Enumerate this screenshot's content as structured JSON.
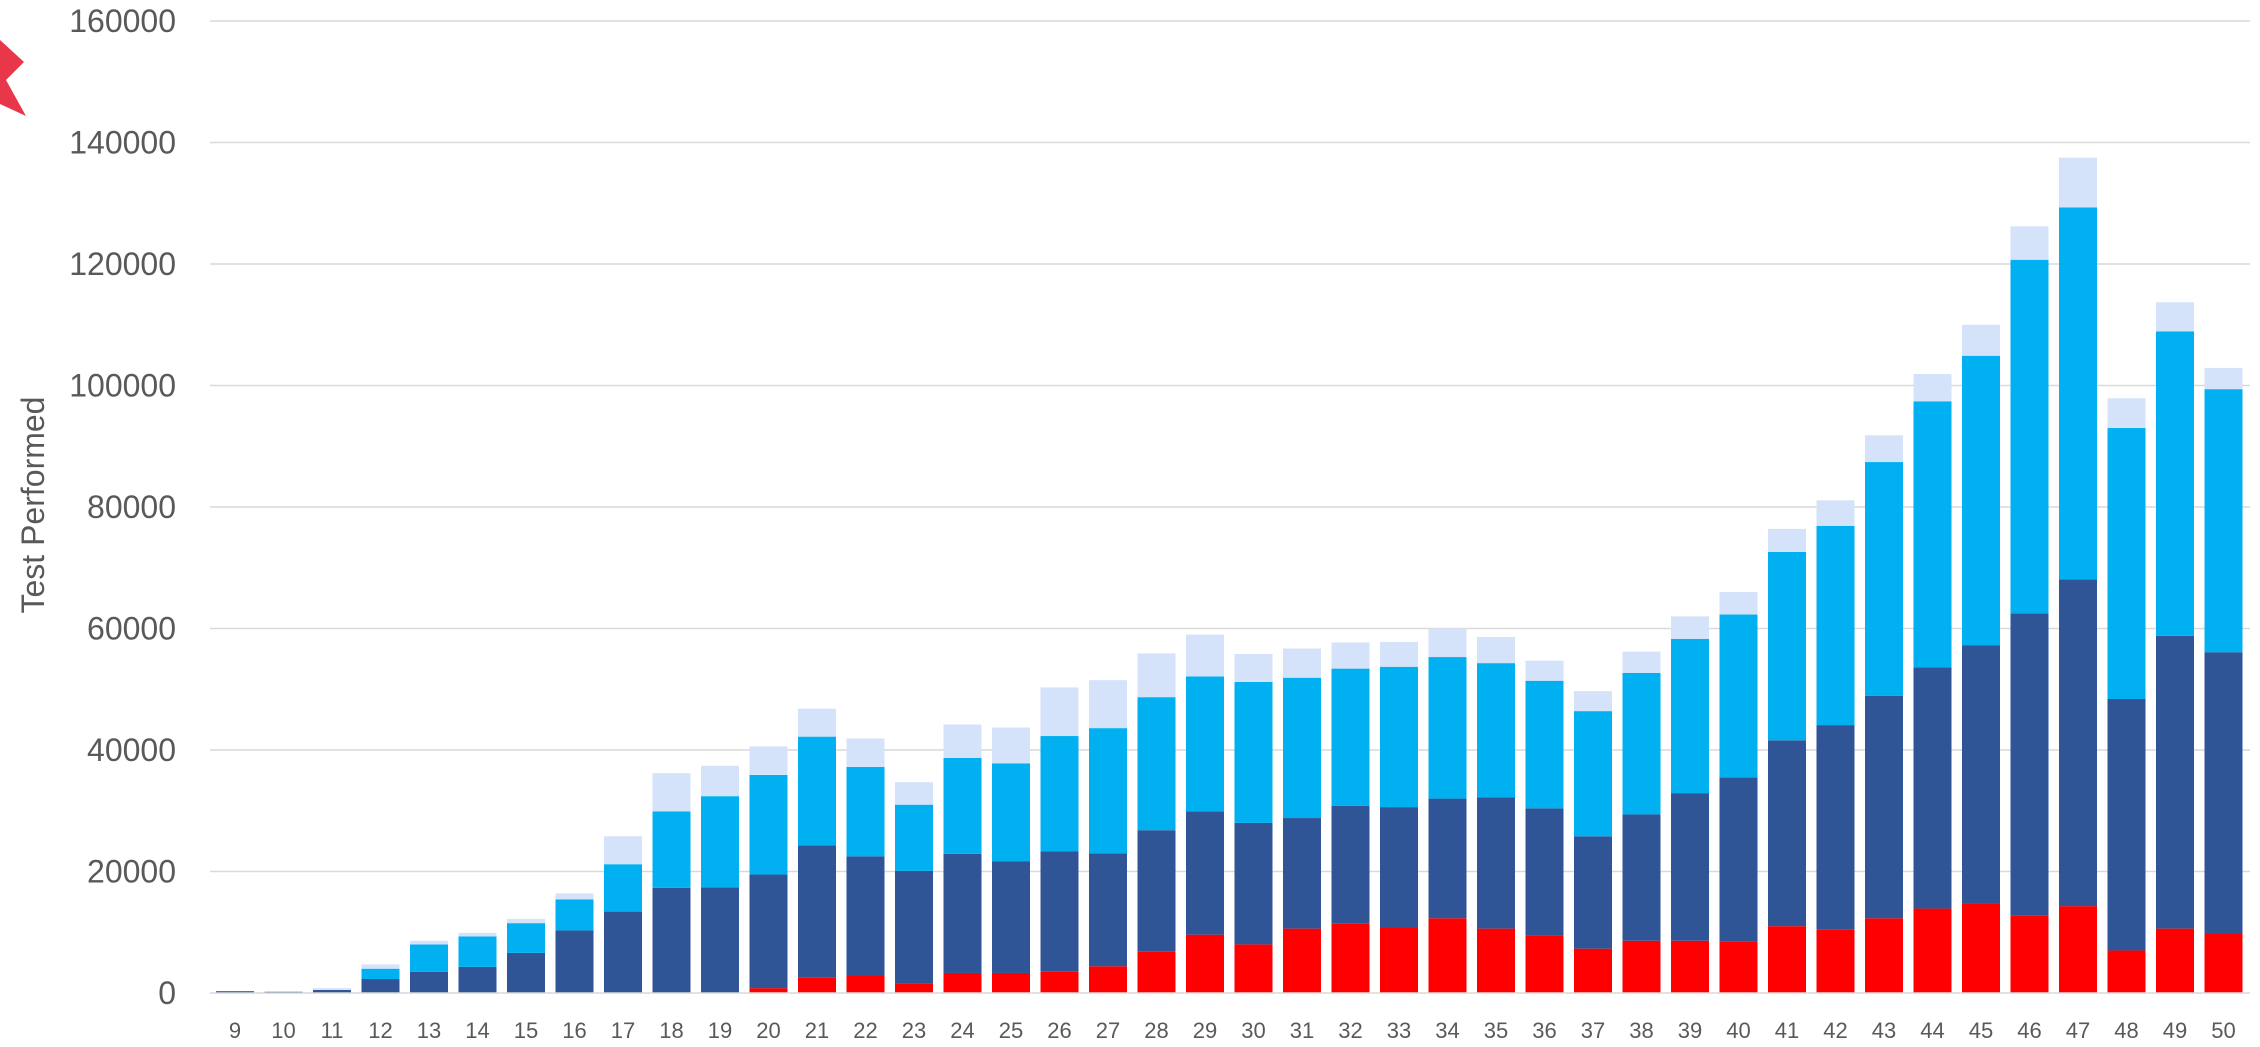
{
  "chart_data": {
    "type": "bar",
    "stacked": true,
    "title": "",
    "xlabel": "",
    "ylabel": "Test Performed",
    "ylim": [
      0,
      160000
    ],
    "yticks": [
      0,
      20000,
      40000,
      60000,
      80000,
      100000,
      120000,
      140000,
      160000
    ],
    "grid": true,
    "legend": "none",
    "categories": [
      "9",
      "10",
      "11",
      "12",
      "13",
      "14",
      "15",
      "16",
      "17",
      "18",
      "19",
      "20",
      "21",
      "22",
      "23",
      "24",
      "25",
      "26",
      "27",
      "28",
      "29",
      "30",
      "31",
      "32",
      "33",
      "34",
      "35",
      "36",
      "37",
      "38",
      "39",
      "40",
      "41",
      "42",
      "43",
      "44",
      "45",
      "46",
      "47",
      "48",
      "49",
      "50"
    ],
    "series": [
      {
        "color": "#ff0000",
        "values": [
          0,
          0,
          0,
          0,
          0,
          0,
          0,
          0,
          0,
          0,
          0,
          800,
          2500,
          2800,
          1500,
          3300,
          3300,
          3500,
          4400,
          6800,
          9600,
          8000,
          10600,
          11400,
          10700,
          12300,
          10600,
          9400,
          7300,
          8600,
          8600,
          8500,
          11000,
          10500,
          12300,
          13900,
          14800,
          12700,
          14300,
          7000,
          10600,
          9800
        ]
      },
      {
        "color": "#2f5597",
        "values": [
          300,
          200,
          500,
          2300,
          3500,
          4300,
          6600,
          10300,
          13400,
          17300,
          17400,
          18700,
          21800,
          19700,
          18600,
          19600,
          18400,
          19800,
          18600,
          20000,
          20300,
          20000,
          18200,
          19400,
          19900,
          19700,
          21600,
          21000,
          18500,
          20800,
          24300,
          27000,
          30600,
          33600,
          36600,
          39700,
          42400,
          49800,
          53800,
          41400,
          48200,
          46300
        ]
      },
      {
        "color": "#00b0f0",
        "values": [
          0,
          0,
          0,
          1700,
          4500,
          5000,
          4900,
          5100,
          7800,
          12600,
          15000,
          16400,
          17900,
          14700,
          10900,
          15800,
          16100,
          19000,
          20600,
          21900,
          22200,
          23200,
          23100,
          22600,
          23100,
          23300,
          22100,
          21000,
          20600,
          23300,
          25400,
          26800,
          31000,
          32800,
          38500,
          43800,
          47700,
          58200,
          61200,
          44600,
          50100,
          43300
        ]
      },
      {
        "color": "#d5e3fa",
        "values": [
          0,
          0,
          300,
          700,
          600,
          600,
          700,
          1000,
          4600,
          6300,
          5000,
          4700,
          4600,
          4700,
          3700,
          5500,
          5900,
          8000,
          7900,
          7200,
          6900,
          4600,
          4800,
          4300,
          4100,
          4700,
          4300,
          3300,
          3300,
          3500,
          3700,
          3700,
          3800,
          4200,
          4400,
          4500,
          5100,
          5500,
          8200,
          4900,
          4800,
          3500
        ]
      }
    ]
  },
  "decor": {
    "brand_color": "#e8364a"
  }
}
